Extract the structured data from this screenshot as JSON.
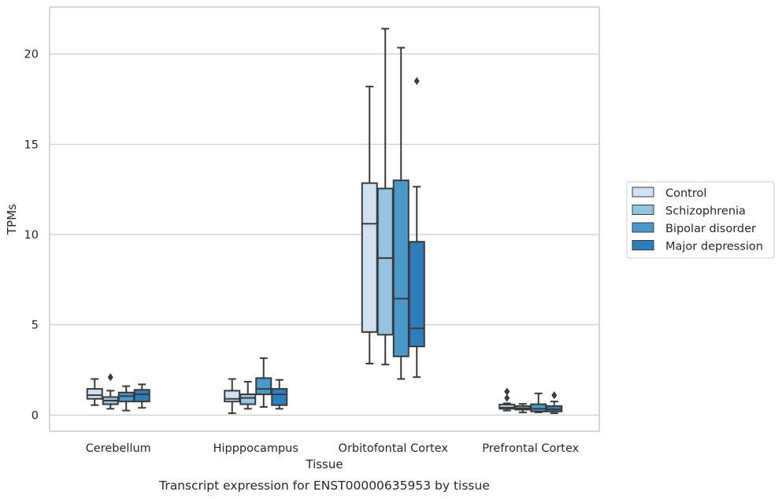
{
  "chart_data": {
    "type": "box",
    "title": "",
    "caption": "Transcript expression for ENST00000635953 by tissue",
    "xlabel": "Tissue",
    "ylabel": "TPMs",
    "ylim": [
      -0.9,
      22.6
    ],
    "yticks": [
      0,
      5,
      10,
      15,
      20
    ],
    "grid": "horizontal",
    "legend_position": "right",
    "categories": [
      "Cerebellum",
      "Hipppocampus",
      "Orbitofontal Cortex",
      "Prefrontal Cortex"
    ],
    "series": [
      {
        "name": "Control",
        "color": "#d0e1f2",
        "boxes": [
          {
            "whislo": 0.55,
            "q1": 0.9,
            "med": 1.1,
            "q3": 1.45,
            "whishi": 2.0,
            "fliers": []
          },
          {
            "whislo": 0.1,
            "q1": 0.75,
            "med": 0.9,
            "q3": 1.35,
            "whishi": 2.0,
            "fliers": []
          },
          {
            "whislo": 2.85,
            "q1": 4.6,
            "med": 10.6,
            "q3": 12.85,
            "whishi": 18.2,
            "fliers": []
          },
          {
            "whislo": 0.25,
            "q1": 0.35,
            "med": 0.42,
            "q3": 0.58,
            "whishi": 0.65,
            "fliers": [
              0.95,
              1.3
            ]
          }
        ]
      },
      {
        "name": "Schizophrenia",
        "color": "#94c4df",
        "boxes": [
          {
            "whislo": 0.35,
            "q1": 0.6,
            "med": 0.8,
            "q3": 1.0,
            "whishi": 1.35,
            "fliers": [
              2.1
            ]
          },
          {
            "whislo": 0.35,
            "q1": 0.6,
            "med": 0.95,
            "q3": 1.15,
            "whishi": 1.85,
            "fliers": []
          },
          {
            "whislo": 2.8,
            "q1": 4.45,
            "med": 8.7,
            "q3": 12.55,
            "whishi": 21.4,
            "fliers": []
          },
          {
            "whislo": 0.15,
            "q1": 0.3,
            "med": 0.38,
            "q3": 0.5,
            "whishi": 0.62,
            "fliers": []
          }
        ]
      },
      {
        "name": "Bipolar disorder",
        "color": "#4a98c9",
        "boxes": [
          {
            "whislo": 0.25,
            "q1": 0.75,
            "med": 1.05,
            "q3": 1.25,
            "whishi": 1.6,
            "fliers": []
          },
          {
            "whislo": 0.45,
            "q1": 1.15,
            "med": 1.45,
            "q3": 2.05,
            "whishi": 3.15,
            "fliers": []
          },
          {
            "whislo": 2.0,
            "q1": 3.25,
            "med": 6.45,
            "q3": 13.0,
            "whishi": 20.35,
            "fliers": []
          },
          {
            "whislo": 0.15,
            "q1": 0.2,
            "med": 0.35,
            "q3": 0.6,
            "whishi": 1.2,
            "fliers": []
          }
        ]
      },
      {
        "name": "Major depression",
        "color": "#2e7ebc",
        "boxes": [
          {
            "whislo": 0.4,
            "q1": 0.75,
            "med": 1.15,
            "q3": 1.4,
            "whishi": 1.7,
            "fliers": []
          },
          {
            "whislo": 0.35,
            "q1": 0.55,
            "med": 1.15,
            "q3": 1.45,
            "whishi": 1.95,
            "fliers": []
          },
          {
            "whislo": 2.1,
            "q1": 3.8,
            "med": 4.8,
            "q3": 9.6,
            "whishi": 12.65,
            "fliers": [
              18.5
            ]
          },
          {
            "whislo": 0.1,
            "q1": 0.2,
            "med": 0.32,
            "q3": 0.5,
            "whishi": 0.75,
            "fliers": [
              1.1
            ]
          }
        ]
      }
    ]
  }
}
